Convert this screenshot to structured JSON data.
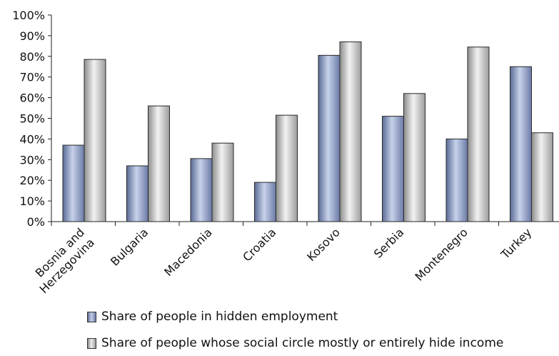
{
  "chart_data": {
    "type": "bar",
    "categories": [
      [
        "Bosnia and",
        "Herzegovina"
      ],
      [
        "Bulgaria"
      ],
      [
        "Macedonia"
      ],
      [
        "Croatia"
      ],
      [
        "Kosovo"
      ],
      [
        "Serbia"
      ],
      [
        "Montenegro"
      ],
      [
        "Turkey"
      ]
    ],
    "series": [
      {
        "name": "Share of people in hidden employment",
        "values": [
          37,
          27,
          30.5,
          19,
          80.5,
          51,
          40,
          75
        ]
      },
      {
        "name": "Share of people whose social circle mostly or entirely hide income",
        "values": [
          78.5,
          56,
          38,
          51.5,
          87,
          62,
          84.5,
          43
        ]
      }
    ],
    "ylim": [
      0,
      100
    ],
    "yticks": [
      "0%",
      "10%",
      "20%",
      "30%",
      "40%",
      "50%",
      "60%",
      "70%",
      "80%",
      "90%",
      "100%"
    ],
    "xlabel": "",
    "ylabel": "",
    "grid": false,
    "legend_position": "bottom"
  },
  "colors": {
    "series1": "#8a9cc4",
    "series2": "#c8c8c8",
    "axis": "#222222"
  }
}
